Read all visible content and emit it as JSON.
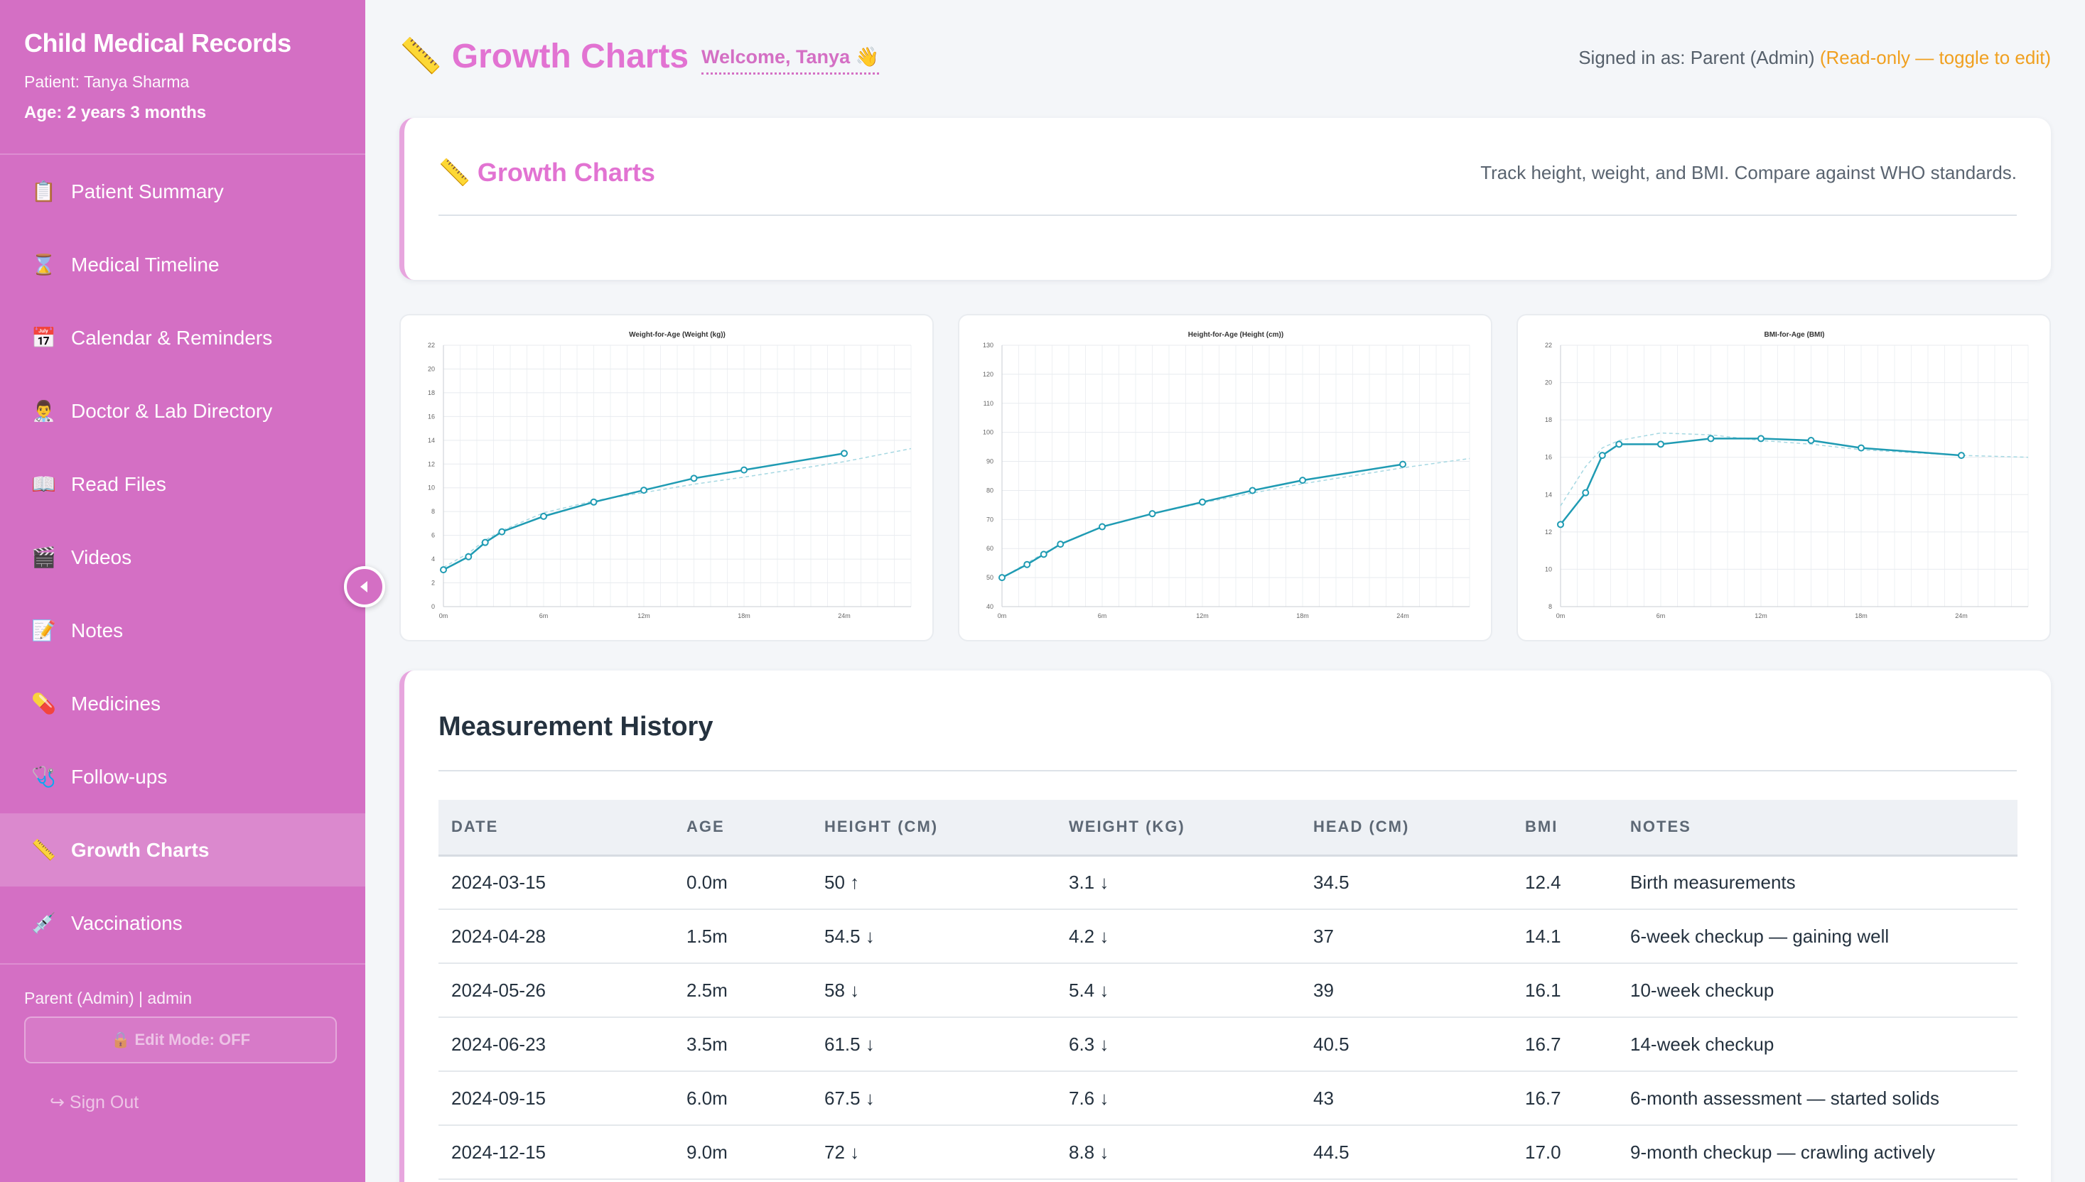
{
  "sidebar": {
    "title": "Child Medical Records",
    "patient": "Patient: Tanya Sharma",
    "age": "Age: 2 years 3 months",
    "items": [
      {
        "icon": "📋",
        "label": "Patient Summary"
      },
      {
        "icon": "⌛",
        "label": "Medical Timeline"
      },
      {
        "icon": "📅",
        "label": "Calendar & Reminders"
      },
      {
        "icon": "👨‍⚕️",
        "label": "Doctor & Lab Directory"
      },
      {
        "icon": "📖",
        "label": "Read Files"
      },
      {
        "icon": "🎬",
        "label": "Videos"
      },
      {
        "icon": "📝",
        "label": "Notes"
      },
      {
        "icon": "💊",
        "label": "Medicines"
      },
      {
        "icon": "🩺",
        "label": "Follow-ups"
      },
      {
        "icon": "📏",
        "label": "Growth Charts",
        "active": true
      },
      {
        "icon": "💉",
        "label": "Vaccinations"
      }
    ],
    "user": "Parent (Admin) | admin",
    "edit_mode": "🔒 Edit Mode: OFF",
    "sign_out": "↪ Sign Out"
  },
  "header": {
    "icon": "📏",
    "title": "Growth Charts",
    "welcome": "Welcome, Tanya 👋",
    "signed_in": "Signed in as: Parent (Admin)",
    "read_only": "(Read-only — toggle to edit)"
  },
  "section": {
    "icon": "📏",
    "title": "Growth Charts",
    "description": "Track height, weight, and BMI. Compare against WHO standards."
  },
  "chart_data": [
    {
      "type": "line",
      "title": "Weight-for-Age (Weight (kg))",
      "x_ticks": [
        "0m",
        "6m",
        "12m",
        "18m",
        "24m"
      ],
      "x": [
        0,
        1.5,
        2.5,
        3.5,
        6,
        9,
        12,
        15,
        18,
        24
      ],
      "series": [
        {
          "values": [
            3.1,
            4.2,
            5.4,
            6.3,
            7.6,
            8.8,
            9.8,
            10.8,
            11.5,
            12.9
          ]
        }
      ],
      "reference": [
        3.3,
        4.5,
        5.6,
        6.4,
        7.9,
        8.9,
        9.6,
        10.3,
        10.9,
        12.2,
        13.3
      ],
      "reference_x": [
        0,
        1.5,
        2.5,
        3.5,
        6,
        9,
        12,
        15,
        18,
        24,
        28
      ],
      "ylim": [
        0,
        22
      ],
      "y_ticks": [
        0,
        2,
        4,
        6,
        8,
        10,
        12,
        14,
        16,
        18,
        20,
        22
      ]
    },
    {
      "type": "line",
      "title": "Height-for-Age (Height (cm))",
      "x_ticks": [
        "0m",
        "6m",
        "12m",
        "18m",
        "24m"
      ],
      "x": [
        0,
        1.5,
        2.5,
        3.5,
        6,
        9,
        12,
        15,
        18,
        24
      ],
      "series": [
        {
          "values": [
            50,
            54.5,
            58,
            61.5,
            67.5,
            72,
            76,
            80,
            83.5,
            89
          ]
        }
      ],
      "reference": [
        49.9,
        55,
        58.4,
        61.4,
        67.6,
        72,
        75.7,
        79.1,
        82.3,
        87.8,
        91
      ],
      "reference_x": [
        0,
        1.5,
        2.5,
        3.5,
        6,
        9,
        12,
        15,
        18,
        24,
        28
      ],
      "ylim": [
        40,
        130
      ],
      "y_ticks": [
        40,
        50,
        60,
        70,
        80,
        90,
        100,
        110,
        120,
        130
      ]
    },
    {
      "type": "line",
      "title": "BMI-for-Age (BMI)",
      "x_ticks": [
        "0m",
        "6m",
        "12m",
        "18m",
        "24m"
      ],
      "x": [
        0,
        1.5,
        2.5,
        3.5,
        6,
        9,
        12,
        15,
        18,
        24
      ],
      "series": [
        {
          "values": [
            12.4,
            14.1,
            16.1,
            16.7,
            16.7,
            17.0,
            17.0,
            16.9,
            16.5,
            16.1
          ]
        }
      ],
      "reference": [
        13.4,
        15.5,
        16.5,
        16.9,
        17.3,
        17.2,
        16.9,
        16.7,
        16.4,
        16.1,
        16.0
      ],
      "reference_x": [
        0,
        1.5,
        2.5,
        3.5,
        6,
        9,
        12,
        15,
        18,
        24,
        28
      ],
      "ylim": [
        8,
        22
      ],
      "y_ticks": [
        8,
        10,
        12,
        14,
        16,
        18,
        20,
        22
      ]
    }
  ],
  "history": {
    "title": "Measurement History",
    "columns": [
      "DATE",
      "AGE",
      "HEIGHT (CM)",
      "WEIGHT (KG)",
      "HEAD (CM)",
      "BMI",
      "NOTES"
    ],
    "rows": [
      [
        "2024-03-15",
        "0.0m",
        "50 ↑",
        "3.1 ↓",
        "34.5",
        "12.4",
        "Birth measurements"
      ],
      [
        "2024-04-28",
        "1.5m",
        "54.5 ↓",
        "4.2 ↓",
        "37",
        "14.1",
        "6-week checkup — gaining well"
      ],
      [
        "2024-05-26",
        "2.5m",
        "58 ↓",
        "5.4 ↓",
        "39",
        "16.1",
        "10-week checkup"
      ],
      [
        "2024-06-23",
        "3.5m",
        "61.5 ↓",
        "6.3 ↓",
        "40.5",
        "16.7",
        "14-week checkup"
      ],
      [
        "2024-09-15",
        "6.0m",
        "67.5 ↓",
        "7.6 ↓",
        "43",
        "16.7",
        "6-month assessment — started solids"
      ],
      [
        "2024-12-15",
        "9.0m",
        "72 ↓",
        "8.8 ↓",
        "44.5",
        "17.0",
        "9-month checkup — crawling actively"
      ]
    ]
  }
}
